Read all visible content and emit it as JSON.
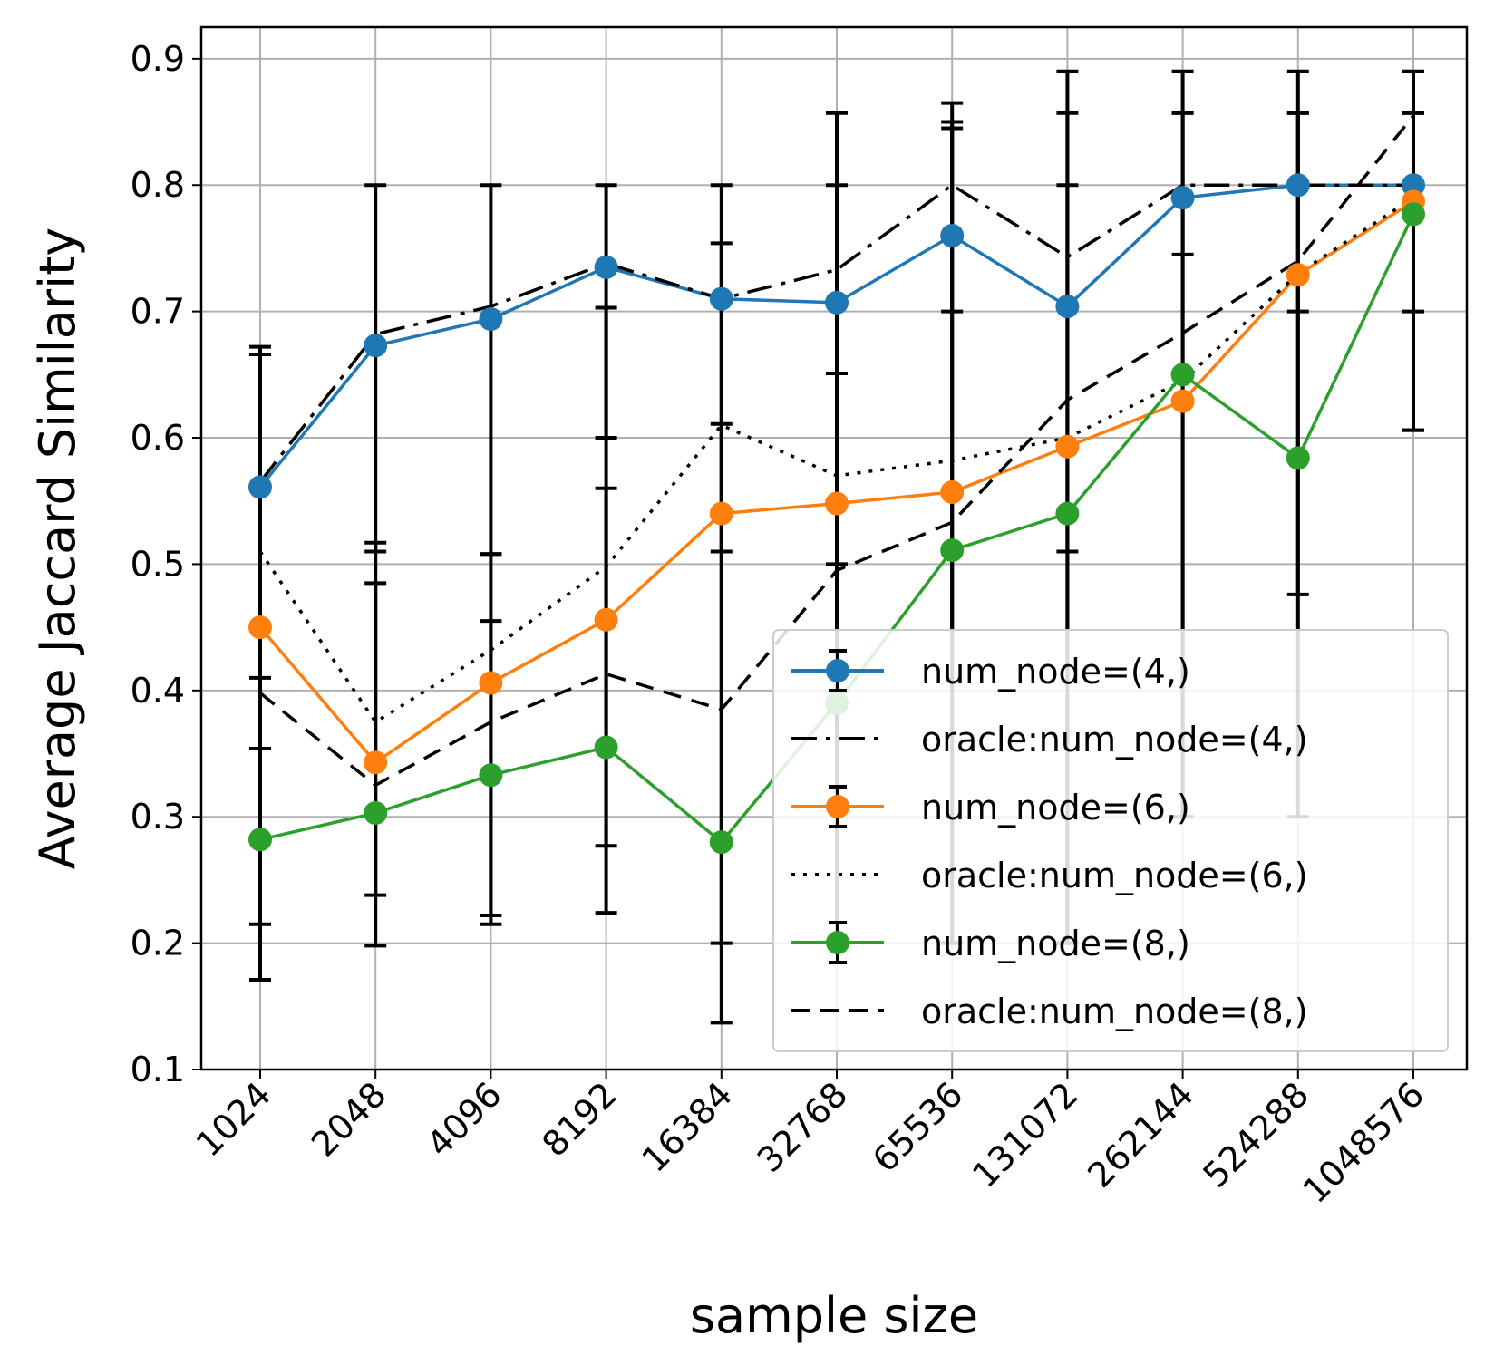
{
  "chart_data": {
    "type": "line",
    "xlabel": "sample size",
    "ylabel": "Average Jaccard Similarity",
    "categories": [
      "1024",
      "2048",
      "4096",
      "8192",
      "16384",
      "32768",
      "65536",
      "131072",
      "262144",
      "524288",
      "1048576"
    ],
    "ylim": [
      0.1,
      0.925
    ],
    "yticks": [
      0.1,
      0.2,
      0.3,
      0.4,
      0.5,
      0.6,
      0.7,
      0.8,
      0.9
    ],
    "ytick_labels": [
      "0.1",
      "0.2",
      "0.3",
      "0.4",
      "0.5",
      "0.6",
      "0.7",
      "0.8",
      "0.9"
    ],
    "grid": true,
    "legend_position": "lower-right",
    "series": [
      {
        "name": "num_node=(4,)",
        "kind": "errorbar",
        "color": "#1f77b4",
        "values": [
          0.561,
          0.673,
          0.694,
          0.735,
          0.71,
          0.707,
          0.76,
          0.704,
          0.79,
          0.8,
          0.8
        ],
        "err_low": [
          0.41,
          0.51,
          0.508,
          0.6,
          0.51,
          0.5,
          0.7,
          0.51,
          0.745,
          0.7,
          0.7
        ],
        "err_high": [
          0.672,
          0.8,
          0.8,
          0.8,
          0.8,
          0.857,
          0.865,
          0.89,
          0.89,
          0.89,
          0.89
        ]
      },
      {
        "name": "oracle:num_node=(4,)",
        "kind": "line",
        "dash": "dashdot",
        "color": "#000000",
        "values": [
          0.565,
          0.682,
          0.704,
          0.738,
          0.71,
          0.733,
          0.8,
          0.743,
          0.8,
          0.8,
          0.8
        ]
      },
      {
        "name": "num_node=(6,)",
        "kind": "errorbar",
        "color": "#ff7f0e",
        "values": [
          0.45,
          0.343,
          0.406,
          0.456,
          0.54,
          0.548,
          0.557,
          0.593,
          0.629,
          0.729,
          0.787
        ],
        "err_low": [
          0.215,
          0.198,
          0.215,
          0.277,
          0.2,
          0.2,
          0.2,
          0.2,
          0.3,
          0.476,
          0.606
        ],
        "err_high": [
          0.666,
          0.517,
          0.508,
          0.703,
          0.754,
          0.8,
          0.85,
          0.857,
          0.857,
          0.857,
          0.857
        ]
      },
      {
        "name": "oracle:num_node=(6,)",
        "kind": "line",
        "dash": "dotted",
        "color": "#000000",
        "values": [
          0.51,
          0.375,
          0.432,
          0.498,
          0.61,
          0.57,
          0.582,
          0.6,
          0.645,
          0.73,
          0.79
        ]
      },
      {
        "name": "num_node=(8,)",
        "kind": "errorbar",
        "color": "#2ca02c",
        "values": [
          0.282,
          0.303,
          0.333,
          0.355,
          0.28,
          0.39,
          0.511,
          0.54,
          0.65,
          0.584,
          0.777
        ],
        "err_low": [
          0.171,
          0.238,
          0.222,
          0.224,
          0.137,
          0.2,
          0.2,
          0.2,
          0.3,
          0.3,
          0.606
        ],
        "err_high": [
          0.354,
          0.485,
          0.455,
          0.56,
          0.611,
          0.651,
          0.845,
          0.8,
          0.857,
          0.857,
          0.857
        ]
      },
      {
        "name": "oracle:num_node=(8,)",
        "kind": "line",
        "dash": "dashed",
        "color": "#000000",
        "values": [
          0.398,
          0.325,
          0.375,
          0.413,
          0.385,
          0.495,
          0.533,
          0.63,
          0.683,
          0.74,
          0.855
        ]
      }
    ]
  }
}
